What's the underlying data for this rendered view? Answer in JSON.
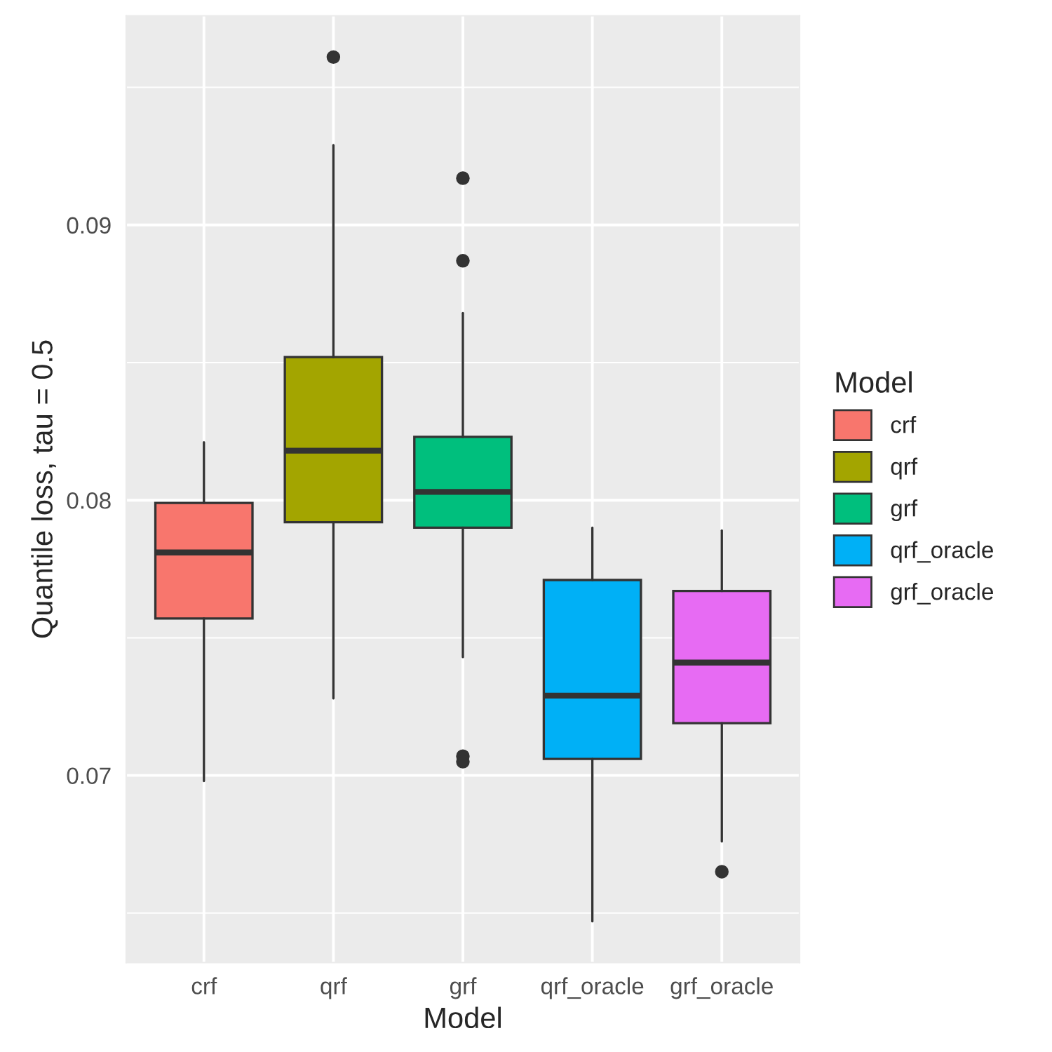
{
  "chart_data": {
    "type": "box",
    "xlabel": "Model",
    "ylabel": "Quantile loss, tau = 0.5",
    "legend_title": "Model",
    "categories": [
      "crf",
      "qrf",
      "grf",
      "qrf_oracle",
      "grf_oracle"
    ],
    "series": [
      {
        "name": "crf",
        "color": "#f8766d",
        "boxes": [
          {
            "low": 0.0698,
            "q1": 0.0757,
            "median": 0.0781,
            "q3": 0.0799,
            "high": 0.0821
          },
          null,
          null,
          null,
          null
        ]
      },
      {
        "name": "qrf",
        "color": "#a3a500",
        "boxes": [
          null,
          {
            "low": 0.0728,
            "q1": 0.0792,
            "median": 0.0818,
            "q3": 0.0852,
            "high": 0.0929,
            "outliers": [
              0.0961
            ]
          },
          null,
          null,
          null
        ]
      },
      {
        "name": "grf",
        "color": "#00bf7d",
        "boxes": [
          null,
          null,
          {
            "low": 0.0743,
            "q1": 0.079,
            "median": 0.0803,
            "q3": 0.0823,
            "high": 0.0868,
            "outliers": [
              0.0917,
              0.0887,
              0.0707,
              0.0705
            ]
          },
          null,
          null
        ]
      },
      {
        "name": "qrf_oracle",
        "color": "#00b0f6",
        "boxes": [
          null,
          null,
          null,
          {
            "low": 0.0647,
            "q1": 0.0706,
            "median": 0.0729,
            "q3": 0.0771,
            "high": 0.079
          },
          null
        ]
      },
      {
        "name": "grf_oracle",
        "color": "#e76bf3",
        "boxes": [
          null,
          null,
          null,
          null,
          {
            "low": 0.0676,
            "q1": 0.0719,
            "median": 0.0741,
            "q3": 0.0767,
            "high": 0.0789,
            "outliers": [
              0.0665
            ]
          }
        ]
      }
    ],
    "ylim": [
      0.0632,
      0.0976
    ],
    "yticks": [
      {
        "value": 0.065,
        "label": null
      },
      0.07,
      {
        "value": 0.075,
        "label": null
      },
      0.08,
      {
        "value": 0.085,
        "label": null
      },
      0.09,
      {
        "value": 0.095,
        "label": null
      }
    ],
    "grid": true,
    "legend": "right"
  }
}
